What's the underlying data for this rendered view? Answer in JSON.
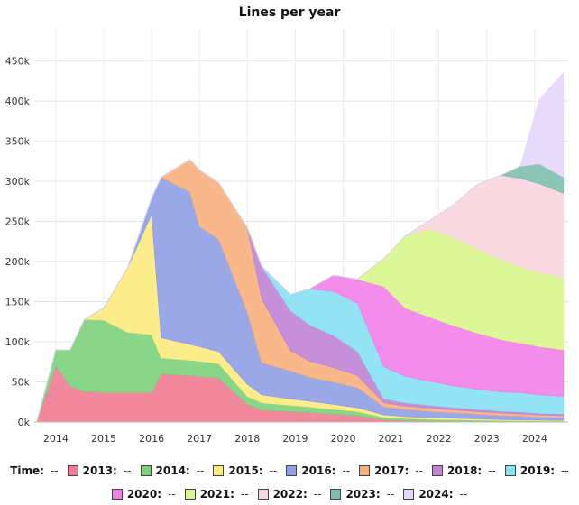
{
  "chart_data": {
    "type": "area",
    "title": "Lines per year",
    "xlabel": "",
    "ylabel": "",
    "x_ticks": [
      "2014",
      "2015",
      "2016",
      "2017",
      "2018",
      "2019",
      "2020",
      "2021",
      "2022",
      "2023",
      "2024"
    ],
    "y_ticks": [
      "0k",
      "50k",
      "100k",
      "150k",
      "200k",
      "250k",
      "300k",
      "350k",
      "400k",
      "450k"
    ],
    "ylim": [
      0,
      490000
    ],
    "xlim": [
      2013.55,
      2024.7
    ],
    "grid": true,
    "stacked": true,
    "x": [
      2013.6,
      2014.0,
      2014.3,
      2014.6,
      2015.0,
      2015.5,
      2016.0,
      2016.2,
      2016.8,
      2017.0,
      2017.4,
      2018.0,
      2018.3,
      2018.9,
      2019.3,
      2019.8,
      2020.3,
      2020.85,
      2021.3,
      2021.8,
      2022.3,
      2022.8,
      2023.3,
      2023.7,
      2024.1,
      2024.6
    ],
    "series": [
      {
        "name": "2013:",
        "color": "#f17b93",
        "values": [
          0,
          70000,
          45000,
          38000,
          37000,
          37000,
          37000,
          60000,
          58000,
          57000,
          55000,
          22000,
          15000,
          13000,
          12000,
          10000,
          8000,
          3000,
          2000,
          1500,
          1200,
          1000,
          800,
          700,
          600,
          500
        ]
      },
      {
        "name": "2014:",
        "color": "#7dd17c",
        "values": [
          0,
          20000,
          45000,
          90000,
          90000,
          75000,
          72000,
          20000,
          19000,
          19000,
          18000,
          10000,
          9000,
          8000,
          7000,
          6000,
          5000,
          3000,
          2500,
          2000,
          1800,
          1500,
          1200,
          1000,
          900,
          800
        ]
      },
      {
        "name": "2015:",
        "color": "#fdea7d",
        "values": [
          0,
          0,
          0,
          0,
          15000,
          80000,
          150000,
          25000,
          20000,
          18000,
          15000,
          15000,
          10000,
          8000,
          7000,
          6000,
          5000,
          3000,
          2500,
          2000,
          1800,
          1500,
          1200,
          1000,
          900,
          800
        ]
      },
      {
        "name": "2016:",
        "color": "#8f9fe4",
        "values": [
          0,
          0,
          0,
          0,
          0,
          0,
          20000,
          200000,
          190000,
          150000,
          140000,
          90000,
          40000,
          35000,
          30000,
          28000,
          25000,
          10000,
          9000,
          8000,
          7000,
          6000,
          5000,
          5000,
          4000,
          4000
        ]
      },
      {
        "name": "2017:",
        "color": "#f7b07c",
        "values": [
          0,
          0,
          0,
          0,
          0,
          0,
          0,
          0,
          40000,
          70000,
          70000,
          105000,
          80000,
          25000,
          20000,
          18000,
          15000,
          5000,
          4000,
          4000,
          3500,
          3000,
          3000,
          2500,
          2500,
          2000
        ]
      },
      {
        "name": "2018:",
        "color": "#c083d6",
        "values": [
          0,
          0,
          0,
          0,
          0,
          0,
          0,
          0,
          0,
          0,
          0,
          0,
          40000,
          50000,
          45000,
          40000,
          30000,
          5000,
          4000,
          3500,
          3000,
          3000,
          2500,
          2500,
          2000,
          2000
        ]
      },
      {
        "name": "2019:",
        "color": "#86e1f3",
        "values": [
          0,
          0,
          0,
          0,
          0,
          0,
          0,
          0,
          0,
          0,
          0,
          0,
          0,
          20000,
          45000,
          55000,
          60000,
          40000,
          33000,
          30000,
          27000,
          25000,
          24000,
          24000,
          23000,
          22000
        ]
      },
      {
        "name": "2020:",
        "color": "#f27fe8",
        "values": [
          0,
          0,
          0,
          0,
          0,
          0,
          0,
          0,
          0,
          0,
          0,
          0,
          0,
          0,
          0,
          20000,
          30000,
          100000,
          85000,
          80000,
          75000,
          70000,
          65000,
          62000,
          60000,
          58000
        ]
      },
      {
        "name": "2021:",
        "color": "#d9f68d",
        "values": [
          0,
          0,
          0,
          0,
          0,
          0,
          0,
          0,
          0,
          0,
          0,
          0,
          0,
          0,
          0,
          0,
          0,
          35000,
          90000,
          110000,
          110000,
          105000,
          100000,
          95000,
          93000,
          90000
        ]
      },
      {
        "name": "2022:",
        "color": "#f9d5e0",
        "values": [
          0,
          0,
          0,
          0,
          0,
          0,
          0,
          0,
          0,
          0,
          0,
          0,
          0,
          0,
          0,
          0,
          0,
          0,
          0,
          10000,
          40000,
          80000,
          105000,
          110000,
          110000,
          105000
        ]
      },
      {
        "name": "2023:",
        "color": "#7fbfae",
        "values": [
          0,
          0,
          0,
          0,
          0,
          0,
          0,
          0,
          0,
          0,
          0,
          0,
          0,
          0,
          0,
          0,
          0,
          0,
          0,
          0,
          0,
          0,
          0,
          15000,
          25000,
          20000
        ]
      },
      {
        "name": "2024:",
        "color": "#e5d6fb",
        "values": [
          0,
          0,
          0,
          0,
          0,
          0,
          0,
          0,
          0,
          0,
          0,
          0,
          0,
          0,
          0,
          0,
          0,
          0,
          0,
          0,
          0,
          0,
          0,
          0,
          80000,
          130000
        ]
      }
    ],
    "legend": {
      "placement": "bottom",
      "time_label": "Time:",
      "placeholder": "--"
    }
  }
}
